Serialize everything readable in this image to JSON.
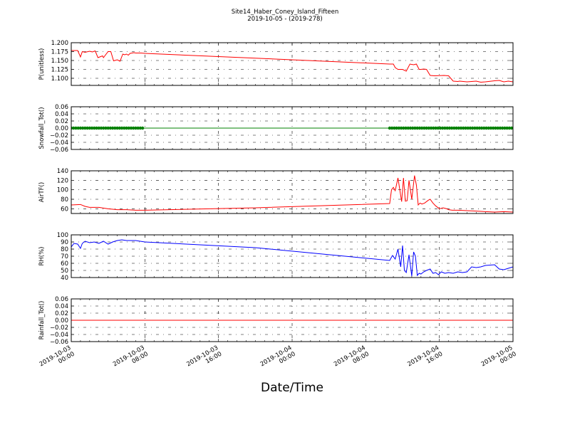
{
  "figure": {
    "title": "Site14_Haber_Coney_Island_Fifteen",
    "subtitle": "2019-10-05 - (2019-278)",
    "xlabel": "Date/Time",
    "x_tick_labels": [
      [
        "2019-10-03",
        "00:00"
      ],
      [
        "2019-10-03",
        "08:00"
      ],
      [
        "2019-10-03",
        "16:00"
      ],
      [
        "2019-10-04",
        "00:00"
      ],
      [
        "2019-10-04",
        "08:00"
      ],
      [
        "2019-10-04",
        "16:00"
      ],
      [
        "2019-10-05",
        "00:00"
      ]
    ]
  },
  "chart_data": [
    {
      "type": "line",
      "ylabel": "P(unitless)",
      "color": "#ff0000",
      "ylim": [
        1.08,
        1.2
      ],
      "yticks": [
        1.1,
        1.125,
        1.15,
        1.175,
        1.2
      ],
      "ytick_labels": [
        "1.100",
        "1.125",
        "1.150",
        "1.175",
        "1.200"
      ],
      "xlim": [
        0,
        48
      ],
      "grid": true,
      "x": [
        0,
        0.7,
        1.0,
        1.2,
        1.5,
        2.0,
        2.3,
        2.6,
        2.9,
        3.1,
        3.4,
        3.5,
        4.0,
        4.3,
        4.6,
        5.0,
        5.3,
        5.6,
        5.8,
        6.0,
        6.2,
        6.4,
        6.8,
        7.0,
        7.6,
        8.0,
        34.6,
        35.0,
        35.2,
        35.5,
        36.0,
        36.4,
        36.8,
        37.2,
        37.5,
        37.8,
        38.0,
        38.3,
        38.6,
        39.0,
        39.5,
        40.5,
        41.0,
        41.5,
        42.0,
        42.2,
        43.0,
        44.0,
        44.5,
        45.0,
        46.0,
        46.5,
        47.0,
        47.5,
        48.0
      ],
      "y": [
        1.178,
        1.178,
        1.16,
        1.175,
        1.173,
        1.176,
        1.174,
        1.177,
        1.158,
        1.16,
        1.163,
        1.158,
        1.175,
        1.175,
        1.149,
        1.152,
        1.148,
        1.168,
        1.166,
        1.168,
        1.165,
        1.17,
        1.172,
        1.171,
        1.171,
        1.17,
        1.14,
        1.14,
        1.13,
        1.125,
        1.125,
        1.12,
        1.14,
        1.138,
        1.14,
        1.125,
        1.125,
        1.126,
        1.125,
        1.108,
        1.107,
        1.108,
        1.107,
        1.092,
        1.091,
        1.092,
        1.09,
        1.092,
        1.089,
        1.09,
        1.093,
        1.094,
        1.09,
        1.092,
        1.09
      ]
    },
    {
      "type": "scatter",
      "ylabel": "Snowfall_Tot()",
      "color": "#008000",
      "ylim": [
        -0.06,
        0.06
      ],
      "yticks": [
        -0.06,
        -0.04,
        -0.02,
        0.0,
        0.02,
        0.04,
        0.06
      ],
      "ytick_labels": [
        "−0.06",
        "−0.04",
        "−0.02",
        "0.00",
        "0.02",
        "0.04",
        "0.06"
      ],
      "xlim": [
        0,
        48
      ],
      "grid": true,
      "line_x": [
        0,
        48
      ],
      "line_y": [
        0,
        0
      ],
      "marker_ranges": [
        [
          0,
          7.8
        ],
        [
          34.6,
          48
        ]
      ],
      "marker_step_hours": 0.25,
      "marker_value": 0
    },
    {
      "type": "line",
      "ylabel": "AirTF()",
      "color": "#ff0000",
      "ylim": [
        50,
        140
      ],
      "yticks": [
        60,
        80,
        100,
        120,
        140
      ],
      "ytick_labels": [
        "60",
        "80",
        "100",
        "120",
        "140"
      ],
      "xlim": [
        0,
        48
      ],
      "grid": true,
      "x": [
        0,
        1.0,
        1.5,
        2.0,
        3.0,
        4.0,
        5.0,
        6.0,
        7.0,
        8.0,
        20.0,
        34.6,
        34.8,
        35.0,
        35.2,
        35.5,
        35.9,
        36.1,
        36.3,
        36.5,
        36.7,
        37.0,
        37.3,
        37.5,
        37.7,
        37.9,
        38.1,
        38.4,
        38.8,
        39.0,
        39.3,
        39.6,
        40.0,
        40.4,
        40.8,
        41.0,
        41.4,
        42.0,
        43.0,
        44.0,
        45.0,
        46.0,
        47.0,
        48.0
      ],
      "y": [
        68,
        69,
        65,
        63,
        63,
        60,
        58,
        58,
        57,
        57,
        62,
        71,
        100,
        105,
        98,
        125,
        75,
        125,
        76,
        77,
        120,
        80,
        130,
        110,
        68,
        72,
        70,
        72,
        78,
        80,
        72,
        66,
        60,
        62,
        60,
        58,
        57,
        57,
        56,
        55,
        54,
        53,
        54,
        53
      ]
    },
    {
      "type": "line",
      "ylabel": "RH(%)",
      "color": "#0000ff",
      "ylim": [
        40,
        100
      ],
      "yticks": [
        40,
        50,
        60,
        70,
        80,
        90,
        100
      ],
      "ytick_labels": [
        "40",
        "50",
        "60",
        "70",
        "80",
        "90",
        "100"
      ],
      "xlim": [
        0,
        48
      ],
      "grid": true,
      "x": [
        0,
        0.3,
        0.7,
        1.0,
        1.2,
        1.5,
        2.0,
        2.5,
        3.0,
        3.5,
        4.0,
        4.5,
        5.0,
        5.5,
        6.0,
        7.0,
        8.0,
        20.0,
        34.6,
        34.9,
        35.2,
        35.5,
        35.8,
        36.0,
        36.2,
        36.4,
        36.7,
        37.0,
        37.2,
        37.4,
        37.6,
        37.8,
        38.0,
        38.3,
        38.6,
        39.0,
        39.3,
        39.6,
        39.9,
        40.2,
        40.6,
        41.0,
        41.5,
        42.0,
        42.5,
        43.0,
        43.5,
        44.0,
        44.5,
        45.0,
        46.0,
        46.5,
        47.0,
        47.5,
        48.0
      ],
      "y": [
        83,
        88,
        87,
        81,
        88,
        91,
        89,
        90,
        88,
        91,
        87,
        90,
        92,
        93,
        92,
        92,
        90,
        82,
        64,
        71,
        66,
        80,
        55,
        85,
        50,
        47,
        72,
        42,
        76,
        70,
        43,
        46,
        45,
        48,
        50,
        52,
        46,
        47,
        44,
        48,
        46,
        47,
        46,
        48,
        47,
        48,
        55,
        54,
        55,
        57,
        58,
        52,
        51,
        53,
        55
      ]
    },
    {
      "type": "line",
      "ylabel": "Rainfall_Tot()",
      "color": "#ff0000",
      "ylim": [
        -0.06,
        0.06
      ],
      "yticks": [
        -0.06,
        -0.04,
        -0.02,
        0.0,
        0.02,
        0.04,
        0.06
      ],
      "ytick_labels": [
        "−0.06",
        "−0.04",
        "−0.02",
        "0.00",
        "0.02",
        "0.04",
        "0.06"
      ],
      "xlim": [
        0,
        48
      ],
      "grid": true,
      "x": [
        0,
        48
      ],
      "y": [
        0,
        0
      ]
    }
  ]
}
